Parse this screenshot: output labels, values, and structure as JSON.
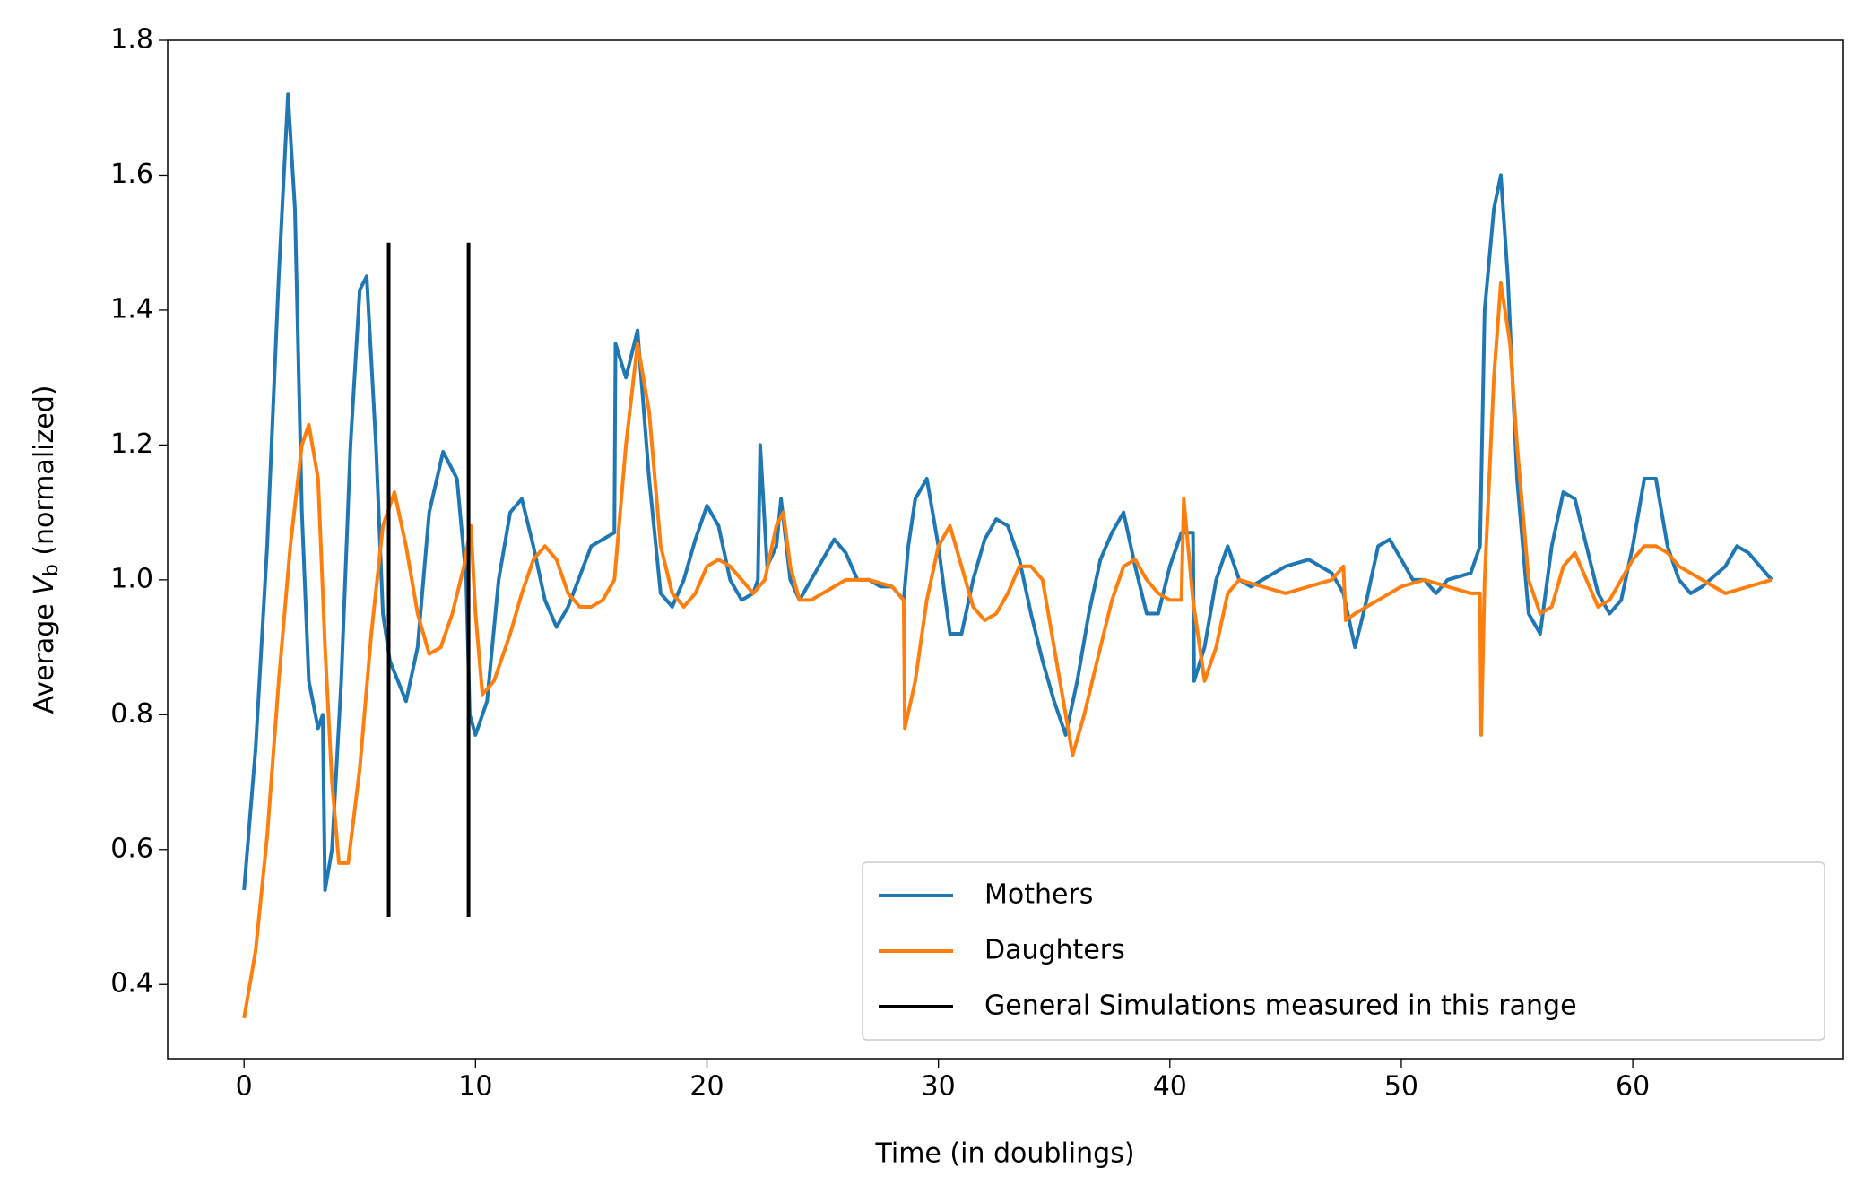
{
  "chart_data": {
    "type": "line",
    "xlabel": "Time (in doublings)",
    "ylabel": {
      "pre": "Average ",
      "var": "V",
      "sub": "b",
      "post": " (normalized)"
    },
    "xlim": [
      -3.3,
      69.1
    ],
    "ylim": [
      0.29,
      1.8
    ],
    "xticks": [
      0,
      10,
      20,
      30,
      40,
      50,
      60
    ],
    "yticks": [
      0.4,
      0.6,
      0.8,
      {
        "value": 1,
        "label": "1.0"
      },
      1.2,
      1.4,
      1.6,
      1.8
    ],
    "legend": "lower right",
    "series": [
      {
        "name": "Mothers",
        "color": "#1f77b4",
        "x": [
          0,
          0.5,
          1,
          1.5,
          1.9,
          2.2,
          2.5,
          2.8,
          3.2,
          3.4,
          3.5,
          3.8,
          4.2,
          4.6,
          5,
          5.3,
          5.7,
          6,
          6.3,
          7,
          7.5,
          8,
          8.6,
          9.2,
          9.6,
          9.75,
          10,
          10.5,
          11,
          11.5,
          12,
          12.5,
          13,
          13.5,
          14,
          15,
          15.5,
          16,
          16.05,
          16.5,
          17,
          17.5,
          18,
          18.5,
          19,
          19.5,
          20,
          20.5,
          21,
          21.5,
          22,
          22.2,
          22.3,
          22.6,
          23,
          23.2,
          23.6,
          24,
          24.5,
          25,
          25.5,
          26,
          26.5,
          27,
          27.5,
          28,
          28.5,
          28.7,
          29,
          29.5,
          30,
          30.5,
          31,
          31.5,
          32,
          32.5,
          33,
          33.5,
          34,
          34.5,
          35,
          35.5,
          36,
          36.5,
          37,
          37.5,
          38,
          38.5,
          39,
          39.5,
          40,
          40.5,
          41,
          41.05,
          41.5,
          42,
          42.5,
          43,
          43.5,
          44,
          45,
          46,
          47,
          47.5,
          48,
          48.5,
          49,
          49.5,
          50,
          50.5,
          51,
          51.5,
          52,
          53,
          53.4,
          53.6,
          54,
          54.3,
          54.6,
          55,
          55.5,
          56,
          56.5,
          57,
          57.5,
          58,
          58.5,
          59,
          59.5,
          60,
          60.5,
          61,
          61.5,
          62,
          62.5,
          63,
          64,
          64.5,
          65,
          65.5,
          66
        ],
        "values": [
          0.54,
          0.75,
          1.05,
          1.45,
          1.72,
          1.55,
          1.1,
          0.85,
          0.78,
          0.8,
          0.54,
          0.6,
          0.85,
          1.2,
          1.43,
          1.45,
          1.2,
          0.95,
          0.88,
          0.82,
          0.9,
          1.1,
          1.19,
          1.15,
          1.0,
          0.8,
          0.77,
          0.82,
          1.0,
          1.1,
          1.12,
          1.05,
          0.97,
          0.93,
          0.96,
          1.05,
          1.06,
          1.07,
          1.35,
          1.3,
          1.37,
          1.15,
          0.98,
          0.96,
          1.0,
          1.06,
          1.11,
          1.08,
          1.0,
          0.97,
          0.98,
          1.0,
          1.2,
          1.02,
          1.05,
          1.12,
          1.0,
          0.97,
          1.0,
          1.03,
          1.06,
          1.04,
          1.0,
          1.0,
          0.99,
          0.99,
          0.97,
          1.05,
          1.12,
          1.15,
          1.05,
          0.92,
          0.92,
          1.0,
          1.06,
          1.09,
          1.08,
          1.03,
          0.95,
          0.88,
          0.82,
          0.77,
          0.85,
          0.95,
          1.03,
          1.07,
          1.1,
          1.02,
          0.95,
          0.95,
          1.02,
          1.07,
          1.07,
          0.85,
          0.9,
          1.0,
          1.05,
          1.0,
          0.99,
          1.0,
          1.02,
          1.03,
          1.01,
          0.98,
          0.9,
          0.97,
          1.05,
          1.06,
          1.03,
          1.0,
          1.0,
          0.98,
          1.0,
          1.01,
          1.05,
          1.4,
          1.55,
          1.6,
          1.45,
          1.15,
          0.95,
          0.92,
          1.05,
          1.13,
          1.12,
          1.05,
          0.98,
          0.95,
          0.97,
          1.05,
          1.15,
          1.15,
          1.05,
          1.0,
          0.98,
          0.99,
          1.02,
          1.05,
          1.04,
          1.02,
          1.0
        ]
      },
      {
        "name": "Daughters",
        "color": "#ff7f0e",
        "x": [
          0,
          0.5,
          1,
          1.5,
          2,
          2.5,
          2.8,
          3.2,
          3.5,
          3.8,
          4.1,
          4.5,
          5,
          5.5,
          6,
          6.5,
          7,
          7.5,
          8,
          8.5,
          9,
          9.5,
          9.8,
          10,
          10.3,
          10.8,
          11.5,
          12,
          12.5,
          13,
          13.5,
          14,
          14.5,
          15,
          15.5,
          16,
          16.5,
          17,
          17.5,
          18,
          18.5,
          19,
          19.5,
          20,
          20.5,
          21,
          21.5,
          22,
          22.5,
          23,
          23.3,
          23.6,
          24,
          24.5,
          25,
          26,
          26.5,
          27,
          28,
          28.5,
          28.55,
          29,
          29.5,
          30,
          30.5,
          31,
          31.5,
          32,
          32.5,
          33,
          33.5,
          34,
          34.5,
          35,
          35.5,
          35.8,
          36.3,
          37,
          37.5,
          38,
          38.5,
          39,
          39.5,
          40,
          40.5,
          40.6,
          41,
          41.5,
          42,
          42.5,
          43,
          44,
          45,
          46,
          47,
          47.5,
          47.6,
          48,
          49,
          50,
          51,
          52,
          53,
          53.4,
          53.45,
          53.6,
          54,
          54.3,
          54.7,
          55,
          55.5,
          56,
          56.5,
          57,
          57.5,
          58,
          58.5,
          59,
          59.5,
          60,
          60.5,
          61,
          61.5,
          62,
          63,
          64,
          65,
          66
        ],
        "values": [
          0.35,
          0.45,
          0.62,
          0.85,
          1.05,
          1.2,
          1.23,
          1.15,
          0.9,
          0.7,
          0.58,
          0.58,
          0.72,
          0.92,
          1.08,
          1.13,
          1.05,
          0.95,
          0.89,
          0.9,
          0.95,
          1.02,
          1.08,
          0.95,
          0.83,
          0.85,
          0.92,
          0.98,
          1.03,
          1.05,
          1.03,
          0.98,
          0.96,
          0.96,
          0.97,
          1.0,
          1.2,
          1.35,
          1.25,
          1.05,
          0.98,
          0.96,
          0.98,
          1.02,
          1.03,
          1.02,
          1.0,
          0.98,
          1.0,
          1.08,
          1.1,
          1.02,
          0.97,
          0.97,
          0.98,
          1.0,
          1.0,
          1.0,
          0.99,
          0.97,
          0.78,
          0.85,
          0.97,
          1.05,
          1.08,
          1.02,
          0.96,
          0.94,
          0.95,
          0.98,
          1.02,
          1.02,
          1.0,
          0.9,
          0.8,
          0.74,
          0.8,
          0.9,
          0.97,
          1.02,
          1.03,
          1.0,
          0.98,
          0.97,
          0.97,
          1.12,
          0.97,
          0.85,
          0.9,
          0.98,
          1.0,
          0.99,
          0.98,
          0.99,
          1.0,
          1.02,
          0.94,
          0.95,
          0.97,
          0.99,
          1.0,
          0.99,
          0.98,
          0.98,
          0.77,
          1.0,
          1.3,
          1.44,
          1.35,
          1.2,
          1.0,
          0.95,
          0.96,
          1.02,
          1.04,
          1.0,
          0.96,
          0.97,
          1.0,
          1.03,
          1.05,
          1.05,
          1.04,
          1.02,
          1.0,
          0.98,
          0.99,
          1.0
        ]
      }
    ],
    "vlines": {
      "name": "General Simulations measured in this range",
      "color": "#000000",
      "x": [
        6.25,
        9.7
      ],
      "ymin": 0.5,
      "ymax": 1.5
    }
  }
}
